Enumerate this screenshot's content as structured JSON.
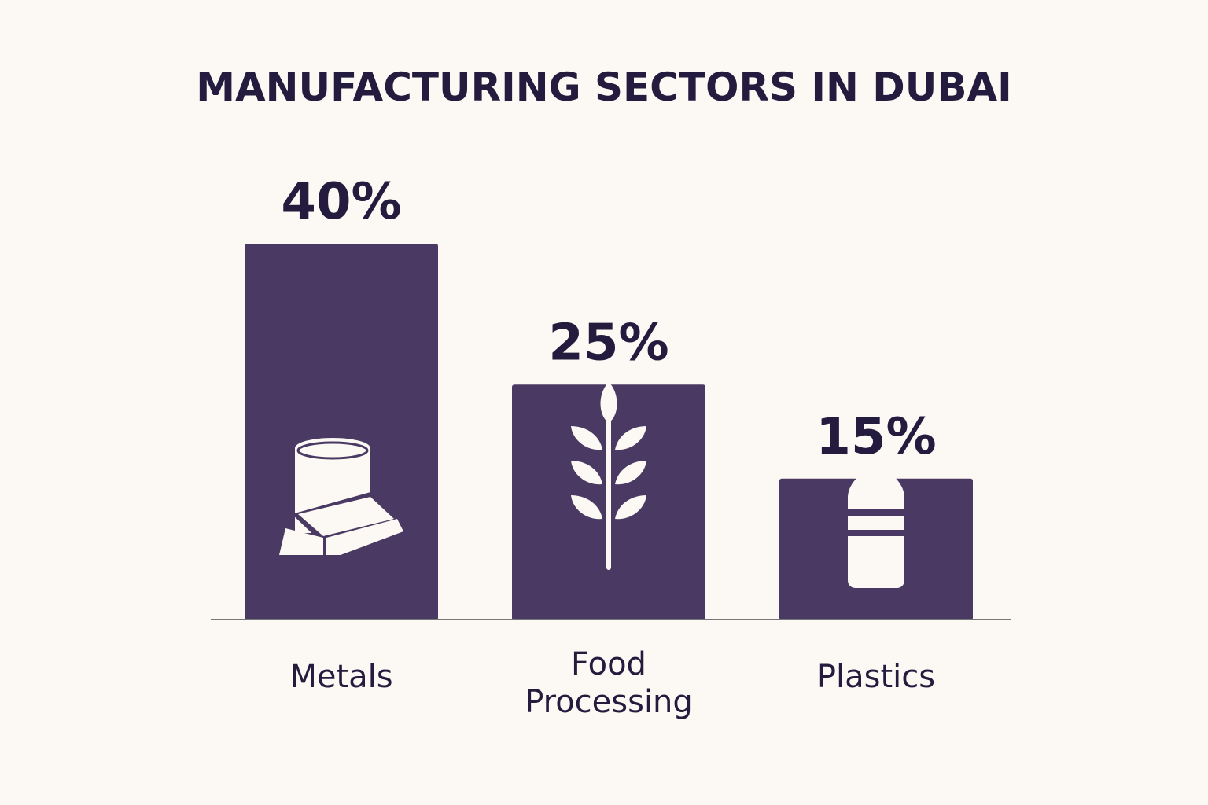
{
  "chart_data": {
    "type": "bar",
    "title": "MANUFACTURING SECTORS IN DUBAI",
    "categories": [
      "Metals",
      "Food Processing",
      "Plastics"
    ],
    "category_lines": [
      [
        "Metals"
      ],
      [
        "Food",
        "Processing"
      ],
      [
        "Plastics"
      ]
    ],
    "values": [
      40,
      25,
      15
    ],
    "value_labels": [
      "40%",
      "25%",
      "15%"
    ],
    "icons": [
      "metal-ingots-icon",
      "wheat-icon",
      "bottle-icon"
    ],
    "xlabel": "",
    "ylabel": "",
    "grid": false,
    "legend": "none",
    "colors": {
      "bar": "#4a3a63",
      "text": "#231c3e",
      "icon": "#fcf8f3",
      "axis": "#777777",
      "background": "#fcf8f3"
    }
  }
}
